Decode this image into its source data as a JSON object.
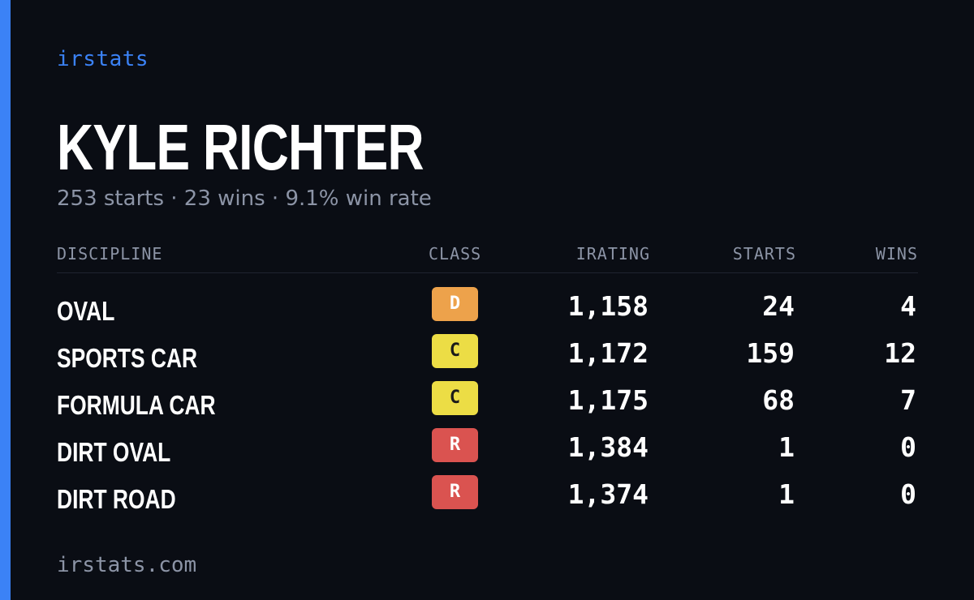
{
  "brand": "irstats",
  "driver": {
    "name": "KYLE RICHTER",
    "summary": "253 starts · 23 wins · 9.1% win rate"
  },
  "table": {
    "headers": {
      "discipline": "DISCIPLINE",
      "class": "CLASS",
      "irating": "IRATING",
      "starts": "STARTS",
      "wins": "WINS"
    },
    "rows": [
      {
        "discipline": "OVAL",
        "class": "D",
        "irating": "1,158",
        "starts": "24",
        "wins": "4"
      },
      {
        "discipline": "SPORTS CAR",
        "class": "C",
        "irating": "1,172",
        "starts": "159",
        "wins": "12"
      },
      {
        "discipline": "FORMULA CAR",
        "class": "C",
        "irating": "1,175",
        "starts": "68",
        "wins": "7"
      },
      {
        "discipline": "DIRT OVAL",
        "class": "R",
        "irating": "1,384",
        "starts": "1",
        "wins": "0"
      },
      {
        "discipline": "DIRT ROAD",
        "class": "R",
        "irating": "1,374",
        "starts": "1",
        "wins": "0"
      }
    ]
  },
  "class_colors": {
    "D": {
      "bg": "#eda24b",
      "fg": "#ffffff"
    },
    "C": {
      "bg": "#ecdd45",
      "fg": "#1a1a1a"
    },
    "R": {
      "bg": "#da5350",
      "fg": "#ffffff"
    }
  },
  "colors": {
    "accent": "#3b82f6",
    "background": "#0a0d14",
    "muted": "#8c94a6"
  },
  "footer": "irstats.com"
}
